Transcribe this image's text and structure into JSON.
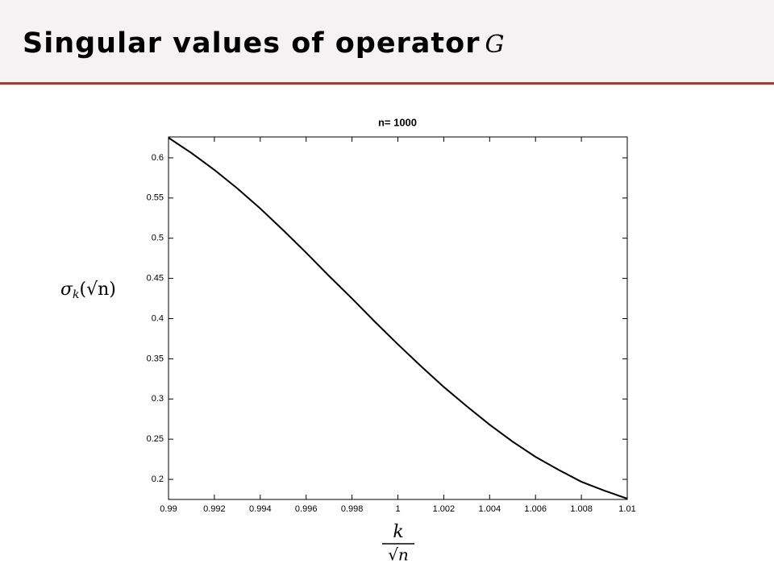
{
  "slide": {
    "title": "Singular values of operator",
    "title_symbol": "G"
  },
  "chart_data": {
    "type": "line",
    "title": "n= 1000",
    "x_label": {
      "numerator": "k",
      "denominator": "√n"
    },
    "y_label": {
      "base": "σ",
      "subscript": "k",
      "argument": "(√n)"
    },
    "x": [
      0.99,
      0.991,
      0.992,
      0.993,
      0.994,
      0.995,
      0.996,
      0.997,
      0.998,
      0.999,
      1,
      1.001,
      1.002,
      1.003,
      1.004,
      1.005,
      1.006,
      1.007,
      1.008,
      1.009,
      1.01
    ],
    "series": [
      {
        "color": "#000000",
        "values": [
          0.625,
          0.606,
          0.585,
          0.562,
          0.537,
          0.51,
          0.482,
          0.453,
          0.425,
          0.396,
          0.368,
          0.341,
          0.315,
          0.291,
          0.268,
          0.247,
          0.228,
          0.212,
          0.197,
          0.186,
          0.176
        ]
      }
    ],
    "xlim": [
      0.99,
      1.01
    ],
    "ylim": [
      0.175,
      0.626
    ],
    "xticks": [
      0.99,
      0.992,
      0.994,
      0.996,
      0.998,
      1,
      1.002,
      1.004,
      1.006,
      1.008,
      1.01
    ],
    "yticks": [
      0.2,
      0.25,
      0.3,
      0.35,
      0.4,
      0.45,
      0.5,
      0.55,
      0.6
    ],
    "grid": false
  }
}
